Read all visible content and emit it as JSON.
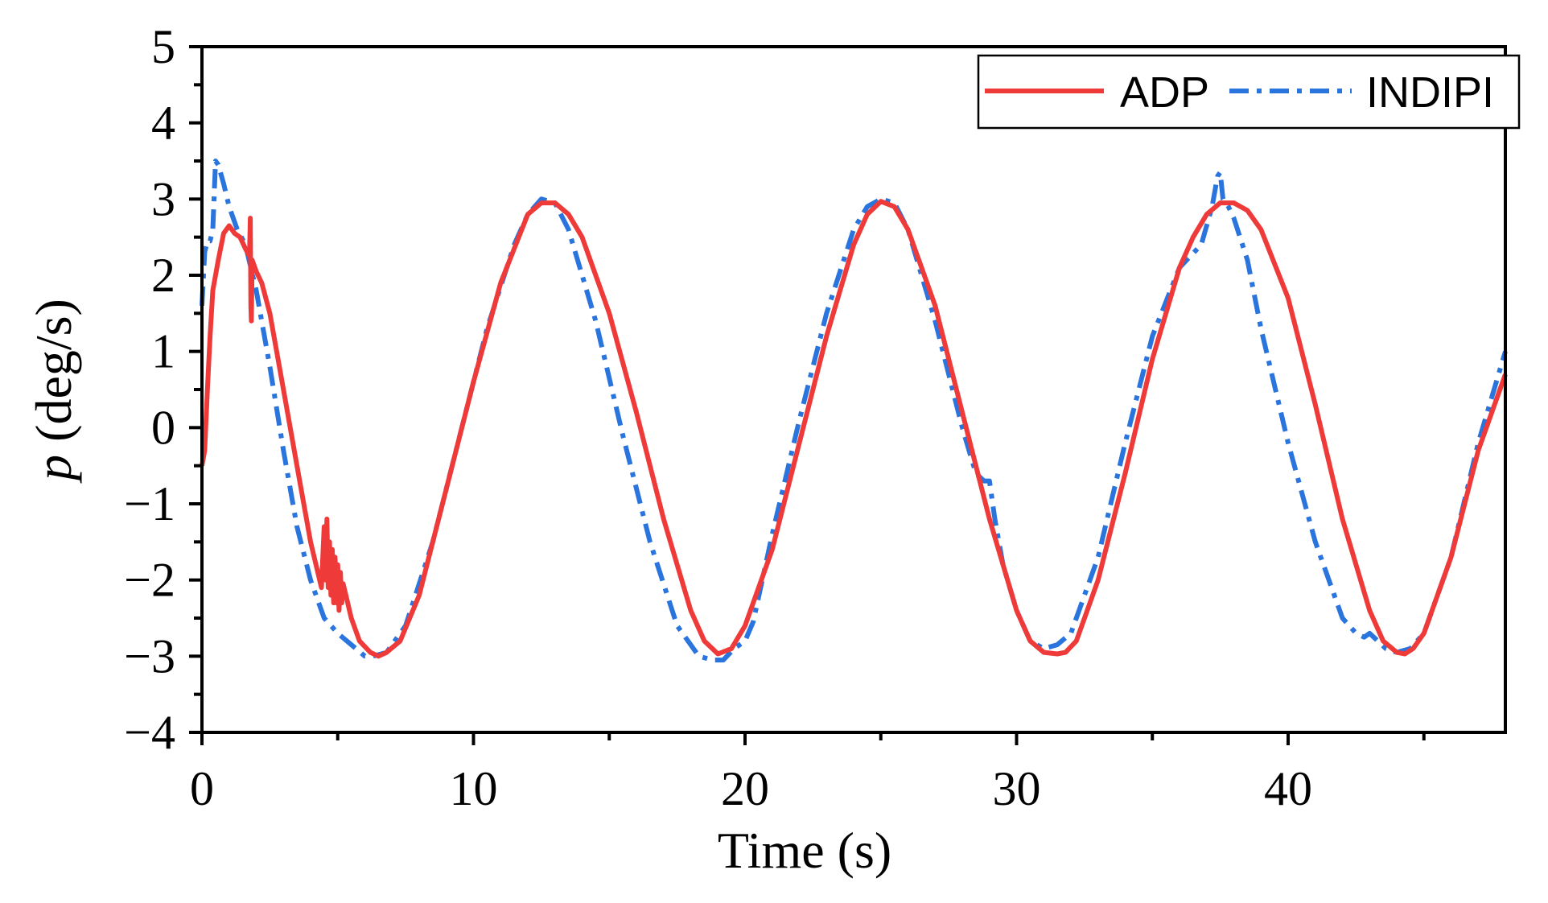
{
  "chart_data": {
    "type": "line",
    "title": "",
    "xlabel": "Time (s)",
    "ylabel_symbol": "p",
    "ylabel_unit": "(deg/s)",
    "xlim": [
      0,
      48
    ],
    "ylim": [
      -4,
      5
    ],
    "x_ticks": [
      0,
      10,
      20,
      30,
      40
    ],
    "x_tick_labels": [
      "0",
      "10",
      "20",
      "30",
      "40"
    ],
    "x_minor_ticks": [
      5,
      15,
      25,
      35,
      45
    ],
    "y_ticks": [
      -4,
      -3,
      -2,
      -1,
      0,
      1,
      2,
      3,
      4,
      5
    ],
    "y_tick_labels": [
      "−4",
      "−3",
      "−2",
      "−1",
      "0",
      "1",
      "2",
      "3",
      "4",
      "5"
    ],
    "y_minor_ticks": [
      -3.5,
      -2.5,
      -1.5,
      -0.5,
      0.5,
      1.5,
      2.5,
      3.5,
      4.5
    ],
    "grid": false,
    "legend_position": "top-right",
    "series": [
      {
        "name": "ADP",
        "color": "#ef3a3a",
        "style": "solid",
        "x": [
          0,
          0.1,
          0.2,
          0.3,
          0.4,
          0.5,
          0.6,
          0.8,
          1.0,
          1.2,
          1.4,
          1.6,
          1.75,
          1.78,
          1.8,
          1.82,
          1.85,
          2.0,
          2.2,
          2.5,
          3.0,
          3.5,
          4.0,
          4.4,
          4.5,
          4.55,
          4.6,
          4.65,
          4.7,
          4.75,
          4.8,
          4.85,
          4.9,
          4.95,
          5.0,
          5.05,
          5.1,
          5.15,
          5.2,
          5.3,
          5.5,
          5.8,
          6.2,
          6.5,
          6.8,
          7.3,
          8.0,
          9.0,
          10.0,
          11.0,
          12.0,
          12.5,
          13.0,
          13.5,
          14.0,
          15.0,
          16.0,
          17.0,
          18.0,
          18.5,
          19.0,
          19.5,
          20.0,
          21.0,
          22.0,
          23.0,
          24.0,
          24.5,
          25.0,
          25.5,
          26.0,
          27.0,
          28.0,
          29.0,
          30.0,
          30.5,
          31.0,
          31.5,
          31.8,
          32.2,
          33.0,
          34.0,
          35.0,
          36.0,
          36.5,
          37.0,
          37.5,
          38.0,
          38.5,
          39.0,
          40.0,
          41.0,
          42.0,
          43.0,
          43.5,
          44.0,
          44.3,
          44.6,
          45.0,
          46.0,
          47.0,
          48.0
        ],
        "y": [
          -0.5,
          -0.3,
          0.5,
          1.2,
          1.8,
          2.0,
          2.2,
          2.55,
          2.65,
          2.55,
          2.5,
          2.35,
          2.25,
          2.75,
          1.6,
          1.4,
          2.2,
          2.05,
          1.9,
          1.5,
          0.5,
          -0.5,
          -1.5,
          -2.1,
          -1.3,
          -2.0,
          -1.2,
          -2.1,
          -1.5,
          -2.2,
          -1.6,
          -2.3,
          -1.7,
          -2.3,
          -1.8,
          -2.4,
          -1.9,
          -2.3,
          -2.05,
          -2.2,
          -2.5,
          -2.8,
          -2.95,
          -3.0,
          -2.95,
          -2.8,
          -2.2,
          -0.8,
          0.6,
          1.9,
          2.8,
          2.95,
          2.95,
          2.8,
          2.5,
          1.5,
          0.2,
          -1.2,
          -2.4,
          -2.8,
          -2.97,
          -2.9,
          -2.6,
          -1.6,
          -0.2,
          1.2,
          2.4,
          2.8,
          2.97,
          2.9,
          2.6,
          1.6,
          0.2,
          -1.2,
          -2.4,
          -2.8,
          -2.95,
          -2.97,
          -2.95,
          -2.8,
          -2.0,
          -0.6,
          0.9,
          2.1,
          2.5,
          2.8,
          2.95,
          2.95,
          2.85,
          2.6,
          1.7,
          0.3,
          -1.2,
          -2.4,
          -2.8,
          -2.95,
          -2.97,
          -2.9,
          -2.7,
          -1.7,
          -0.3,
          0.7
        ]
      },
      {
        "name": "INDIPI",
        "color": "#2a74dd",
        "style": "dashdot",
        "x": [
          0,
          0.1,
          0.2,
          0.3,
          0.4,
          0.5,
          0.6,
          0.8,
          1.0,
          1.3,
          1.6,
          2.0,
          2.5,
          3.0,
          3.5,
          4.0,
          4.5,
          5.0,
          5.5,
          6.0,
          6.3,
          6.8,
          7.5,
          8.5,
          9.5,
          10.5,
          11.5,
          12.0,
          12.5,
          13.0,
          13.5,
          14.5,
          15.5,
          16.5,
          17.5,
          18.3,
          18.8,
          19.2,
          19.6,
          20.0,
          20.3,
          21.0,
          22.0,
          23.0,
          24.0,
          24.5,
          25.0,
          25.5,
          26.0,
          27.0,
          28.0,
          28.5,
          28.8,
          29.0,
          29.2,
          29.5,
          30.0,
          30.5,
          31.0,
          31.5,
          32.0,
          33.0,
          34.0,
          35.0,
          36.0,
          36.8,
          37.2,
          37.4,
          37.5,
          37.6,
          37.8,
          38.0,
          38.5,
          39.0,
          40.0,
          41.0,
          42.0,
          42.5,
          42.8,
          43.0,
          43.3,
          43.6,
          44.0,
          44.5,
          45.0,
          46.0,
          47.0,
          48.0
        ],
        "y": [
          1.6,
          2.3,
          2.45,
          2.45,
          2.6,
          3.5,
          3.45,
          3.2,
          2.9,
          2.6,
          2.4,
          1.8,
          0.8,
          -0.3,
          -1.3,
          -2.0,
          -2.5,
          -2.7,
          -2.85,
          -3.0,
          -3.0,
          -2.95,
          -2.6,
          -1.5,
          -0.1,
          1.3,
          2.4,
          2.8,
          3.0,
          2.95,
          2.6,
          1.4,
          -0.1,
          -1.5,
          -2.6,
          -3.0,
          -3.05,
          -3.05,
          -2.9,
          -2.8,
          -2.55,
          -1.4,
          0.1,
          1.5,
          2.6,
          2.9,
          3.0,
          2.95,
          2.6,
          1.4,
          0.0,
          -0.6,
          -0.7,
          -0.7,
          -1.2,
          -1.8,
          -2.4,
          -2.8,
          -2.9,
          -2.85,
          -2.7,
          -1.7,
          -0.2,
          1.2,
          2.1,
          2.4,
          2.9,
          3.3,
          3.35,
          3.0,
          2.9,
          2.75,
          2.2,
          1.3,
          -0.2,
          -1.5,
          -2.5,
          -2.7,
          -2.75,
          -2.7,
          -2.8,
          -2.9,
          -2.95,
          -2.9,
          -2.7,
          -1.7,
          -0.2,
          1.0
        ]
      }
    ]
  }
}
